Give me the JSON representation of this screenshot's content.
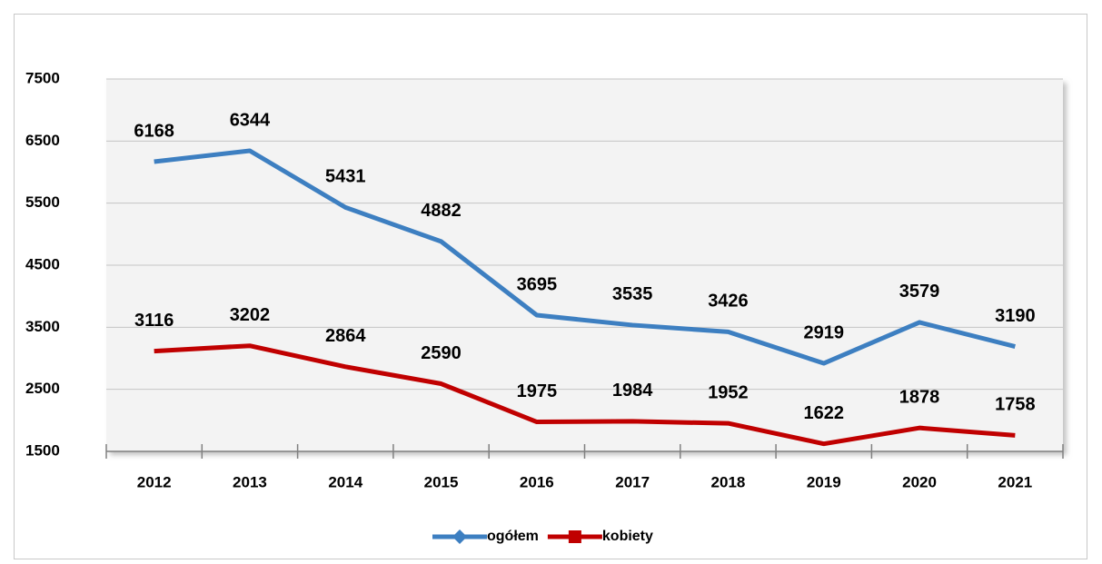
{
  "chart_data": {
    "type": "line",
    "categories": [
      "2012",
      "2013",
      "2014",
      "2015",
      "2016",
      "2017",
      "2018",
      "2019",
      "2020",
      "2021"
    ],
    "series": [
      {
        "name": "ogółem",
        "color": "#3d7fc1",
        "values": [
          6168,
          6344,
          5431,
          4882,
          3695,
          3535,
          3426,
          2919,
          3579,
          3190
        ]
      },
      {
        "name": "kobiety",
        "color": "#c00000",
        "values": [
          3116,
          3202,
          2864,
          2590,
          1975,
          1984,
          1952,
          1622,
          1878,
          1758
        ]
      }
    ],
    "ylim": [
      1500,
      7500
    ],
    "yticks": [
      1500,
      2500,
      3500,
      4500,
      5500,
      6500,
      7500
    ],
    "grid": true,
    "legend": "bottom"
  }
}
